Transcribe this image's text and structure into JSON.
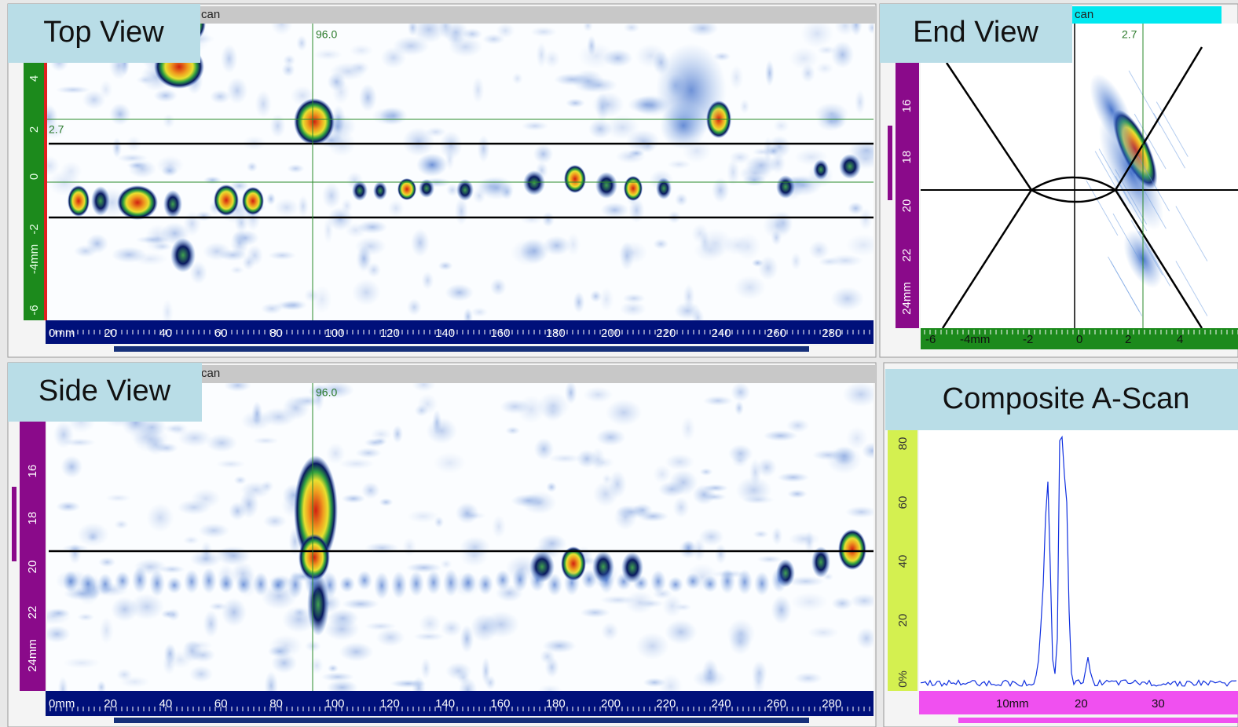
{
  "top_view": {
    "label": "Top View",
    "header": "can",
    "cursor_x": "96.0",
    "cursor_y": "2.7",
    "y_axis": [
      "4",
      "2",
      "0",
      "-2",
      "-4mm",
      "-6"
    ],
    "x_axis": [
      "0mm",
      "20",
      "40",
      "60",
      "80",
      "100",
      "120",
      "140",
      "160",
      "180",
      "200",
      "220",
      "240",
      "260",
      "280"
    ]
  },
  "end_view": {
    "label": "End View",
    "header": "can",
    "cursor_x": "2.7",
    "y_axis": [
      "16",
      "18",
      "20",
      "22",
      "24mm"
    ],
    "x_axis": [
      "-6",
      "-4mm",
      "-2",
      "0",
      "2",
      "4"
    ]
  },
  "side_view": {
    "label": "Side View",
    "header": "can",
    "cursor_x": "96.0",
    "y_axis": [
      "16",
      "18",
      "20",
      "22",
      "24mm"
    ],
    "x_axis": [
      "0mm",
      "20",
      "40",
      "60",
      "80",
      "100",
      "120",
      "140",
      "160",
      "180",
      "200",
      "220",
      "240",
      "260",
      "280"
    ]
  },
  "composite_ascan": {
    "label": "Composite A-Scan",
    "y_axis": [
      "0%",
      "20",
      "40",
      "60",
      "80"
    ],
    "x_axis": [
      "10mm",
      "20",
      "30"
    ]
  }
}
